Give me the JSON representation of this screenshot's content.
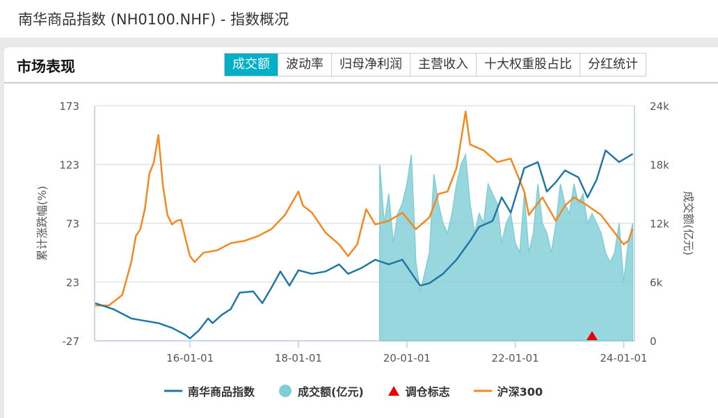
{
  "header": {
    "title": "南华商品指数 (NH0100.NHF) - 指数概况"
  },
  "card": {
    "title": "市场表现",
    "tabs": [
      "成交额",
      "波动率",
      "归母净利润",
      "主营收入",
      "十大权重股占比",
      "分红统计"
    ],
    "active_tab": 0
  },
  "chart_data": {
    "type": "line",
    "ylabel_left": "累计涨跌幅(%)",
    "ylabel_right": "成交额(亿元)",
    "y_left_ticks": [
      "173",
      "123",
      "73",
      "23",
      "-27"
    ],
    "y_left_range": [
      -27,
      173
    ],
    "y_right_ticks": [
      "24k",
      "18k",
      "12k",
      "6k",
      "0"
    ],
    "y_right_range": [
      0,
      24000
    ],
    "x_ticks": [
      "16-01-01",
      "18-01-01",
      "20-01-01",
      "22-01-01",
      "24-01-01"
    ],
    "x_range": [
      "2014-04",
      "2024-03"
    ],
    "grid": true,
    "legend_position": "bottom",
    "legend": [
      "南华商品指数",
      "成交额(亿元)",
      "调仓标志",
      "沪深300"
    ],
    "colors": {
      "nanhua": "#1f77a4",
      "volume": "#7fcdd6",
      "marker": "#ee0000",
      "hs300": "#f5871f"
    },
    "series": [
      {
        "name": "南华商品指数",
        "axis": "left",
        "type": "line",
        "points": [
          [
            "2014-04",
            5
          ],
          [
            "2014-08",
            0
          ],
          [
            "2014-12",
            -8
          ],
          [
            "2015-03",
            -10
          ],
          [
            "2015-06",
            -12
          ],
          [
            "2015-09",
            -16
          ],
          [
            "2015-12",
            -22
          ],
          [
            "2016-01",
            -25
          ],
          [
            "2016-03",
            -18
          ],
          [
            "2016-05",
            -8
          ],
          [
            "2016-06",
            -12
          ],
          [
            "2016-08",
            -5
          ],
          [
            "2016-10",
            0
          ],
          [
            "2016-12",
            14
          ],
          [
            "2017-03",
            15
          ],
          [
            "2017-05",
            5
          ],
          [
            "2017-07",
            18
          ],
          [
            "2017-09",
            32
          ],
          [
            "2017-11",
            20
          ],
          [
            "2018-01",
            33
          ],
          [
            "2018-04",
            30
          ],
          [
            "2018-07",
            32
          ],
          [
            "2018-10",
            38
          ],
          [
            "2018-12",
            30
          ],
          [
            "2019-03",
            35
          ],
          [
            "2019-06",
            42
          ],
          [
            "2019-09",
            38
          ],
          [
            "2019-12",
            42
          ],
          [
            "2020-03",
            25
          ],
          [
            "2020-04",
            20
          ],
          [
            "2020-06",
            22
          ],
          [
            "2020-09",
            30
          ],
          [
            "2020-12",
            42
          ],
          [
            "2021-03",
            58
          ],
          [
            "2021-05",
            70
          ],
          [
            "2021-08",
            75
          ],
          [
            "2021-10",
            95
          ],
          [
            "2021-12",
            82
          ],
          [
            "2022-03",
            120
          ],
          [
            "2022-06",
            125
          ],
          [
            "2022-08",
            100
          ],
          [
            "2022-10",
            108
          ],
          [
            "2022-12",
            118
          ],
          [
            "2023-03",
            112
          ],
          [
            "2023-05",
            95
          ],
          [
            "2023-07",
            110
          ],
          [
            "2023-09",
            135
          ],
          [
            "2023-12",
            125
          ],
          [
            "2024-03",
            132
          ]
        ]
      },
      {
        "name": "成交额(亿元)",
        "axis": "right",
        "type": "area",
        "points": [
          [
            "2019-07",
            18000
          ],
          [
            "2019-08",
            12000
          ],
          [
            "2019-09",
            15000
          ],
          [
            "2019-10",
            10000
          ],
          [
            "2019-11",
            13000
          ],
          [
            "2019-12",
            14000
          ],
          [
            "2020-01",
            16000
          ],
          [
            "2020-02",
            19000
          ],
          [
            "2020-03",
            8000
          ],
          [
            "2020-04",
            5000
          ],
          [
            "2020-05",
            7000
          ],
          [
            "2020-06",
            9000
          ],
          [
            "2020-07",
            17000
          ],
          [
            "2020-08",
            14000
          ],
          [
            "2020-09",
            12000
          ],
          [
            "2020-10",
            11000
          ],
          [
            "2020-11",
            13000
          ],
          [
            "2020-12",
            16000
          ],
          [
            "2021-01",
            18000
          ],
          [
            "2021-02",
            19000
          ],
          [
            "2021-03",
            14000
          ],
          [
            "2021-04",
            11000
          ],
          [
            "2021-05",
            13000
          ],
          [
            "2021-06",
            12000
          ],
          [
            "2021-07",
            16000
          ],
          [
            "2021-08",
            15000
          ],
          [
            "2021-09",
            14000
          ],
          [
            "2021-10",
            10000
          ],
          [
            "2021-11",
            12000
          ],
          [
            "2021-12",
            13000
          ],
          [
            "2022-01",
            10000
          ],
          [
            "2022-02",
            9000
          ],
          [
            "2022-03",
            15000
          ],
          [
            "2022-04",
            9000
          ],
          [
            "2022-05",
            11000
          ],
          [
            "2022-06",
            16000
          ],
          [
            "2022-07",
            12000
          ],
          [
            "2022-08",
            11000
          ],
          [
            "2022-09",
            9000
          ],
          [
            "2022-10",
            12000
          ],
          [
            "2022-11",
            16000
          ],
          [
            "2022-12",
            14000
          ],
          [
            "2023-01",
            13000
          ],
          [
            "2023-02",
            16000
          ],
          [
            "2023-03",
            14000
          ],
          [
            "2023-04",
            15000
          ],
          [
            "2023-05",
            12000
          ],
          [
            "2023-06",
            13000
          ],
          [
            "2023-07",
            12000
          ],
          [
            "2023-08",
            11000
          ],
          [
            "2023-09",
            9000
          ],
          [
            "2023-10",
            8000
          ],
          [
            "2023-11",
            9000
          ],
          [
            "2023-12",
            12000
          ],
          [
            "2024-01",
            6000
          ],
          [
            "2024-02",
            10000
          ],
          [
            "2024-03",
            12000
          ]
        ]
      },
      {
        "name": "调仓标志",
        "type": "marker",
        "points": [
          [
            "2023-06",
            0
          ]
        ]
      },
      {
        "name": "沪深300",
        "axis": "left",
        "type": "line",
        "points": [
          [
            "2014-04",
            3
          ],
          [
            "2014-07",
            3
          ],
          [
            "2014-10",
            12
          ],
          [
            "2014-12",
            40
          ],
          [
            "2015-01",
            62
          ],
          [
            "2015-02",
            68
          ],
          [
            "2015-03",
            85
          ],
          [
            "2015-04",
            115
          ],
          [
            "2015-05",
            125
          ],
          [
            "2015-06",
            148
          ],
          [
            "2015-07",
            105
          ],
          [
            "2015-08",
            80
          ],
          [
            "2015-09",
            72
          ],
          [
            "2015-10",
            75
          ],
          [
            "2015-11",
            76
          ],
          [
            "2015-12",
            60
          ],
          [
            "2016-01",
            45
          ],
          [
            "2016-02",
            40
          ],
          [
            "2016-04",
            48
          ],
          [
            "2016-07",
            50
          ],
          [
            "2016-10",
            56
          ],
          [
            "2017-01",
            58
          ],
          [
            "2017-04",
            62
          ],
          [
            "2017-07",
            68
          ],
          [
            "2017-10",
            80
          ],
          [
            "2018-01",
            100
          ],
          [
            "2018-02",
            88
          ],
          [
            "2018-04",
            82
          ],
          [
            "2018-07",
            65
          ],
          [
            "2018-10",
            55
          ],
          [
            "2018-12",
            45
          ],
          [
            "2019-02",
            55
          ],
          [
            "2019-04",
            85
          ],
          [
            "2019-06",
            72
          ],
          [
            "2019-09",
            75
          ],
          [
            "2019-12",
            82
          ],
          [
            "2020-03",
            68
          ],
          [
            "2020-06",
            78
          ],
          [
            "2020-08",
            98
          ],
          [
            "2020-10",
            100
          ],
          [
            "2020-12",
            120
          ],
          [
            "2021-02",
            168
          ],
          [
            "2021-03",
            140
          ],
          [
            "2021-06",
            135
          ],
          [
            "2021-09",
            125
          ],
          [
            "2021-12",
            128
          ],
          [
            "2022-03",
            100
          ],
          [
            "2022-04",
            80
          ],
          [
            "2022-07",
            95
          ],
          [
            "2022-10",
            75
          ],
          [
            "2022-12",
            88
          ],
          [
            "2023-02",
            95
          ],
          [
            "2023-05",
            88
          ],
          [
            "2023-08",
            80
          ],
          [
            "2023-10",
            70
          ],
          [
            "2024-01",
            55
          ],
          [
            "2024-02",
            58
          ],
          [
            "2024-03",
            68
          ]
        ]
      }
    ]
  }
}
